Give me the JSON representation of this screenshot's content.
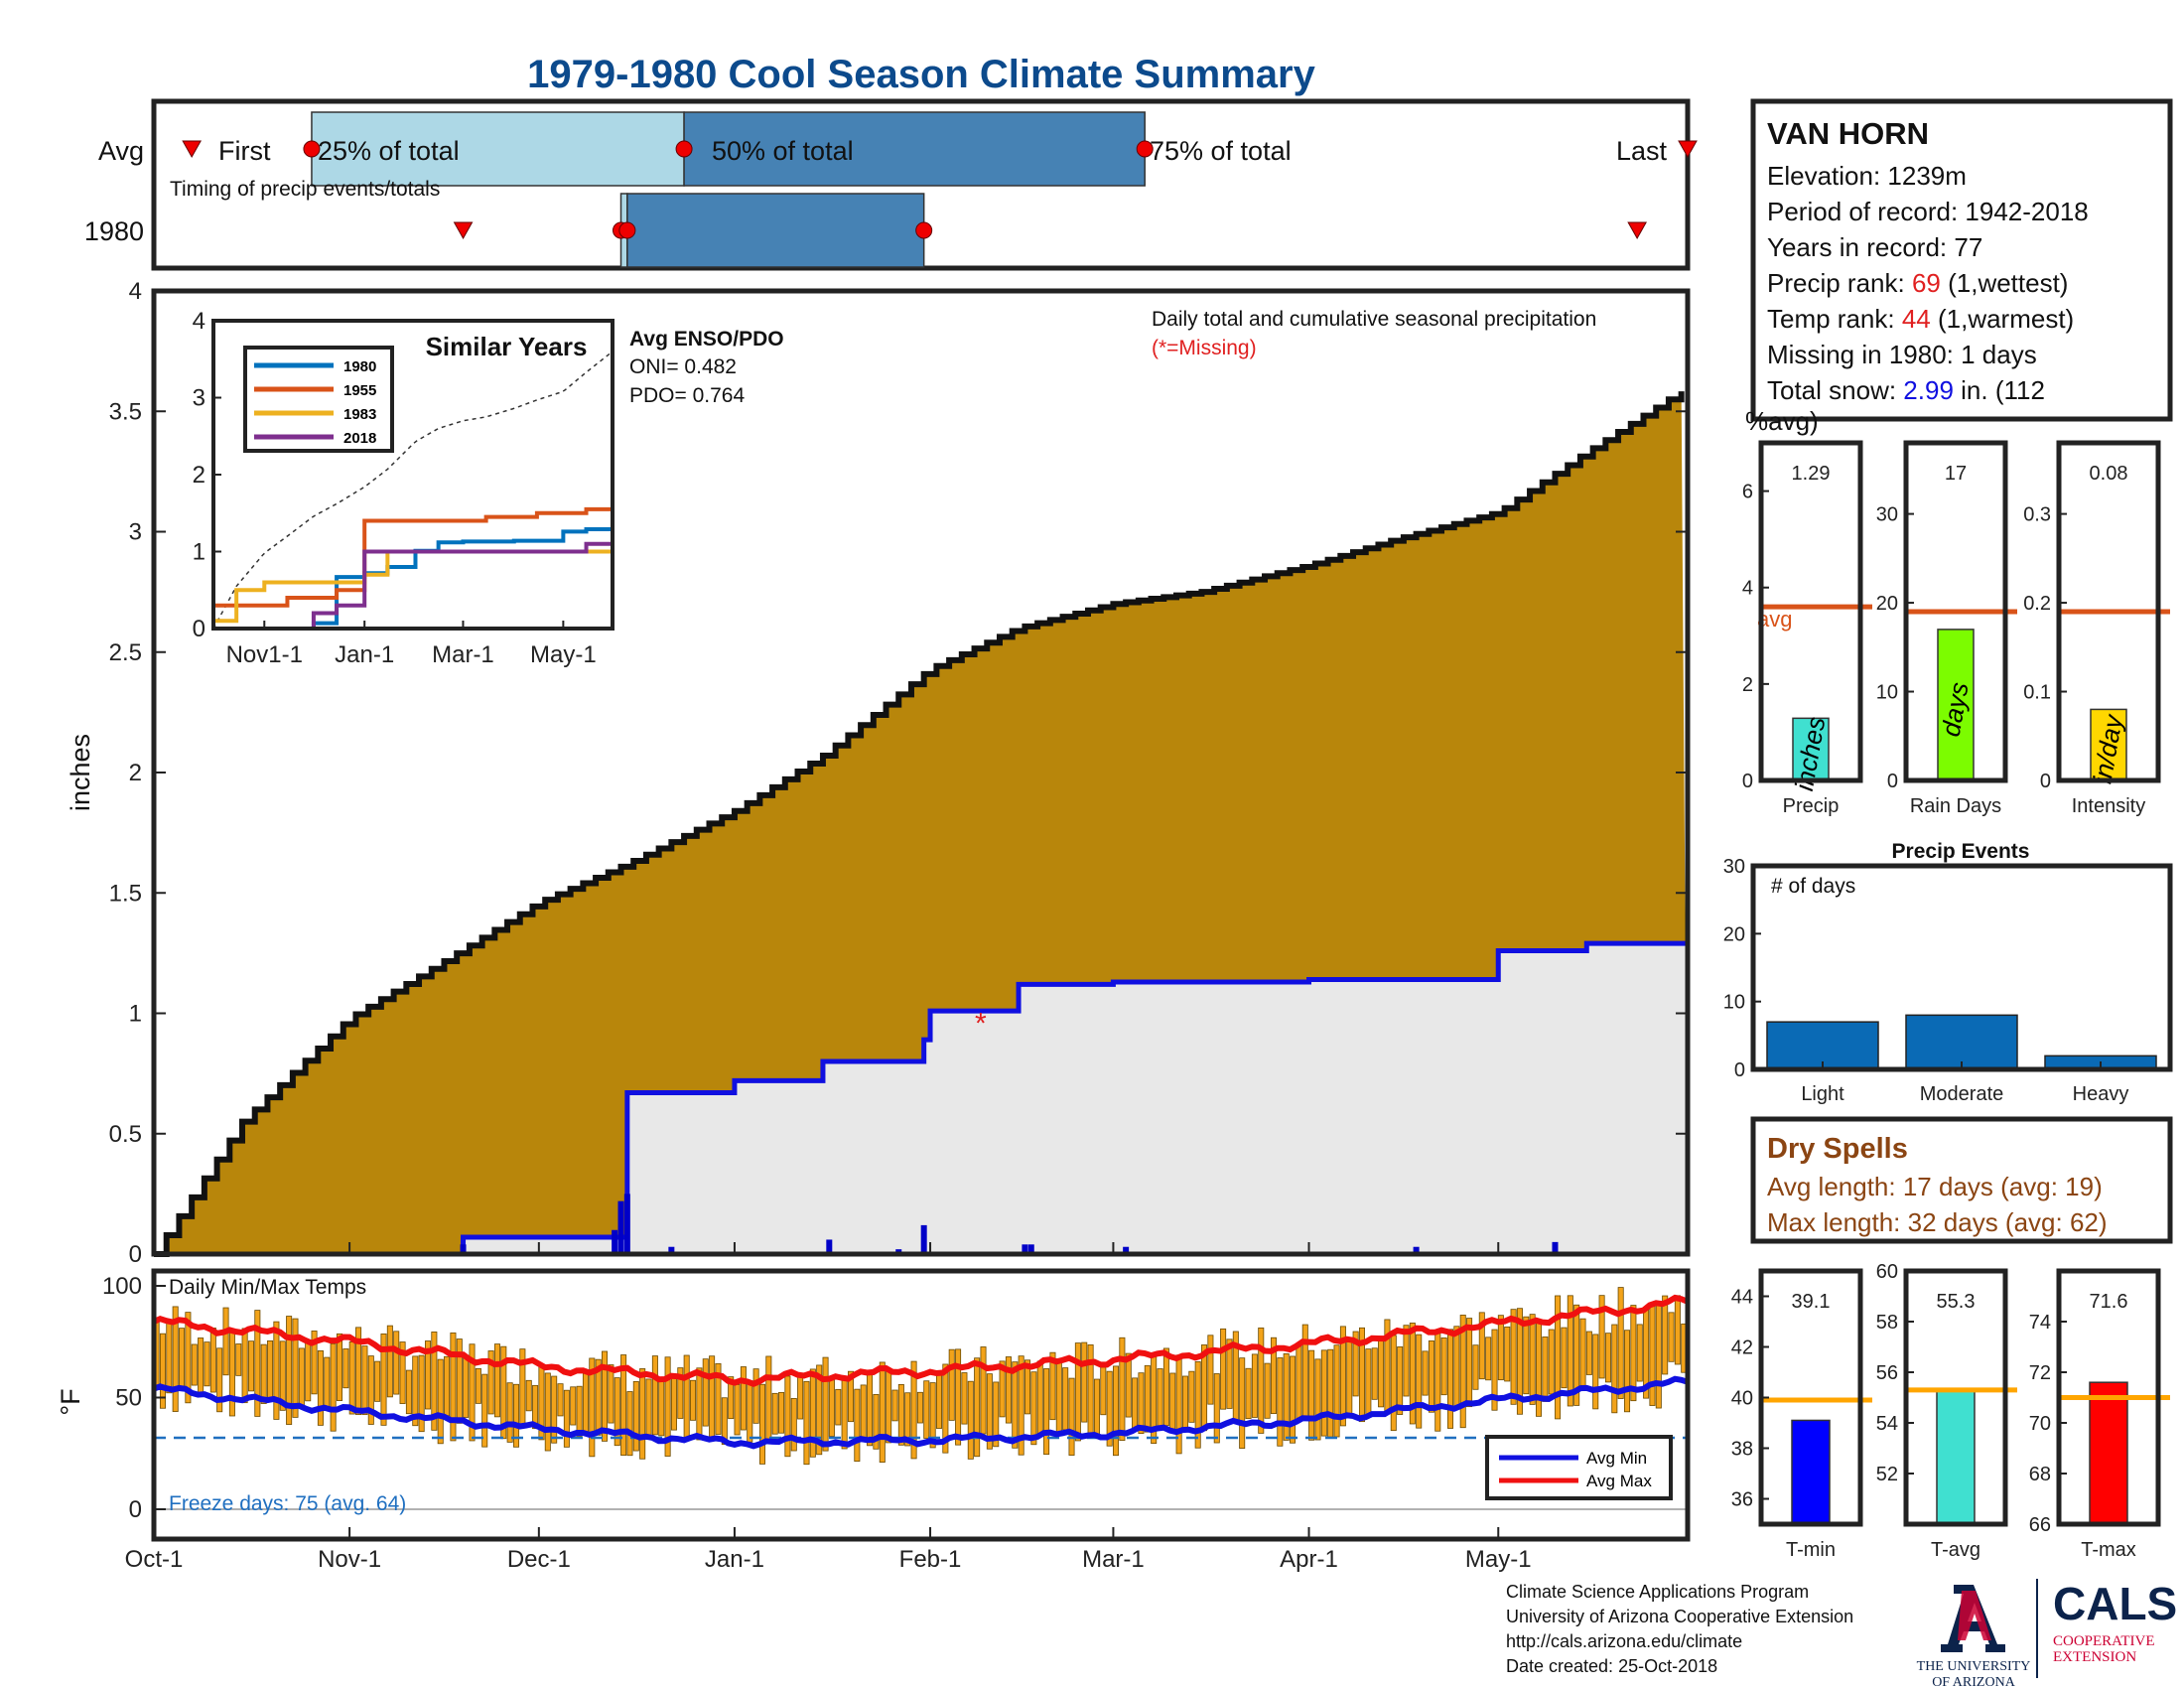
{
  "title": "1979-1980 Cool Season Climate Summary",
  "timing": {
    "row_labels": [
      "Avg",
      "1980"
    ],
    "subtitle": "Timing of precip events/totals",
    "labels": {
      "first": "First",
      "p25": "25% of total",
      "p50": "50% of total",
      "p75": "75% of total",
      "last": "Last"
    },
    "avg": {
      "first": "Oct-7",
      "p25": "Oct-26",
      "p50": "Dec-24",
      "p75": "Mar-6",
      "last": "May-31"
    },
    "y1980": {
      "first": "Nov-19",
      "p25": "Dec-14",
      "p50": "Dec-15",
      "p75": "Jan-31",
      "last": "May-23"
    }
  },
  "station": {
    "name": "VAN HORN",
    "elevation": "Elevation: 1239m",
    "period": "Period of record: 1942-2018",
    "years": "Years in record: 77",
    "precip_rank_label": "Precip rank: ",
    "precip_rank": "69",
    "precip_rank_note": " (1,wettest)",
    "temp_rank_label": "Temp rank: ",
    "temp_rank": "44",
    "temp_rank_note": " (1,warmest)",
    "missing": "Missing in 1980: 1 days",
    "snow_label": "Total snow: ",
    "snow_value": "2.99",
    "snow_note1": " in. (112",
    "snow_note2": "%avg)"
  },
  "main": {
    "ylabel": "inches",
    "legend_line1": "Daily total and cumulative seasonal precipitation",
    "legend_line2": "(*=Missing)",
    "enso_title": "Avg ENSO/PDO",
    "oni": "ONI= 0.482",
    "pdo": "PDO= 0.764",
    "yticks": [
      "0",
      "0.5",
      "1",
      "1.5",
      "2",
      "2.5",
      "3",
      "3.5",
      "4"
    ],
    "xticks": [
      "Oct-1",
      "Nov-1",
      "Dec-1",
      "Jan-1",
      "Feb-1",
      "Mar-1",
      "Apr-1",
      "May-1"
    ]
  },
  "similar": {
    "title": "Similar Years",
    "years": [
      "1980",
      "1955",
      "1983",
      "2018"
    ],
    "colors": [
      "#0072bd",
      "#d95319",
      "#edb120",
      "#7e2f8e"
    ],
    "yticks": [
      "0",
      "1",
      "2",
      "3",
      "4"
    ],
    "xticks": [
      "Nov1-1",
      "Jan-1",
      "Mar-1",
      "May-1"
    ]
  },
  "temps": {
    "label": "Daily Min/Max Temps",
    "ylabel": "°F",
    "yticks": [
      "0",
      "50",
      "100"
    ],
    "freeze": "Freeze days: 75 (avg. 64)",
    "legend_min": "Avg Min",
    "legend_max": "Avg Max"
  },
  "bars_top": [
    {
      "value": "1.29",
      "xlabel": "Precip",
      "unit": "inches",
      "yticks": [
        "0",
        "2",
        "4",
        "6"
      ],
      "avg_label": "avg"
    },
    {
      "value": "17",
      "xlabel": "Rain Days",
      "unit": "days",
      "yticks": [
        "0",
        "10",
        "20",
        "30"
      ]
    },
    {
      "value": "0.08",
      "xlabel": "Intensity",
      "unit": "in/day",
      "yticks": [
        "0",
        "0.1",
        "0.2",
        "0.3"
      ]
    }
  ],
  "events": {
    "title": "Precip Events",
    "ylabel": "# of days",
    "yticks": [
      "0",
      "10",
      "20",
      "30"
    ],
    "categories": [
      "Light",
      "Moderate",
      "Heavy"
    ]
  },
  "dry": {
    "title": "Dry Spells",
    "avg": "Avg length: 17 days (avg: 19)",
    "max": "Max length: 32 days (avg: 62)"
  },
  "bars_temp": [
    {
      "value": "39.1",
      "xlabel": "T-min",
      "yticks": [
        "36",
        "38",
        "40",
        "42",
        "44"
      ]
    },
    {
      "value": "55.3",
      "xlabel": "T-avg",
      "yticks": [
        "52",
        "54",
        "56",
        "58",
        "60"
      ]
    },
    {
      "value": "71.6",
      "xlabel": "T-max",
      "yticks": [
        "66",
        "68",
        "70",
        "72",
        "74"
      ]
    }
  ],
  "footer": {
    "line1": "Climate Science Applications Program",
    "line2": "University of Arizona Cooperative Extension",
    "line3": "http://cals.arizona.edu/climate",
    "line4": " Date created: 25-Oct-2018"
  },
  "logos": {
    "ua_name1": "THE UNIVERSITY",
    "ua_name2": "OF ARIZONA",
    "cals": "CALS",
    "cals_sub1": "COOPERATIVE",
    "cals_sub2": "EXTENSION"
  },
  "chart_data": [
    {
      "type": "area",
      "title": "Daily total and cumulative seasonal precipitation",
      "ylabel": "inches",
      "xlim": [
        "Oct-1",
        "May-31"
      ],
      "ylim": [
        0,
        4
      ],
      "series": [
        {
          "name": "Avg",
          "x": [
            "Oct-1",
            "Oct-15",
            "Nov-1",
            "Nov-15",
            "Dec-1",
            "Dec-15",
            "Jan-1",
            "Jan-15",
            "Feb-1",
            "Feb-15",
            "Mar-1",
            "Mar-15",
            "Apr-1",
            "Apr-15",
            "May-1",
            "May-15",
            "May-31"
          ],
          "y": [
            0.0,
            0.55,
            0.98,
            1.2,
            1.46,
            1.62,
            1.84,
            2.07,
            2.43,
            2.6,
            2.7,
            2.75,
            2.86,
            2.97,
            3.08,
            3.33,
            3.6
          ]
        },
        {
          "name": "1980",
          "x": [
            "Oct-1",
            "Nov-19",
            "Dec-14",
            "Dec-15",
            "Jan-1",
            "Jan-15",
            "Jan-31",
            "Feb-1",
            "Feb-15",
            "Mar-1",
            "Apr-1",
            "May-1",
            "May-15",
            "May-31"
          ],
          "y": [
            0.0,
            0.07,
            0.07,
            0.67,
            0.72,
            0.8,
            0.89,
            1.01,
            1.12,
            1.13,
            1.14,
            1.26,
            1.29,
            1.29
          ]
        }
      ],
      "daily": {
        "x": [
          "Nov-19",
          "Dec-13",
          "Dec-14",
          "Dec-15",
          "Dec-22",
          "Jan-16",
          "Jan-27",
          "Jan-31",
          "Feb-16",
          "Feb-17",
          "Mar-3",
          "Apr-18",
          "May-10",
          "May-23"
        ],
        "y": [
          0.04,
          0.1,
          0.22,
          0.25,
          0.03,
          0.06,
          0.02,
          0.12,
          0.04,
          0.04,
          0.03,
          0.03,
          0.05,
          0.01
        ]
      },
      "missing": [
        "Feb-9"
      ]
    },
    {
      "type": "line",
      "title": "Similar Years",
      "ylim": [
        0,
        4
      ],
      "x": [
        "Oct-1",
        "Oct-15",
        "Nov-1",
        "Nov-15",
        "Dec-1",
        "Dec-15",
        "Jan-1",
        "Jan-15",
        "Feb-1",
        "Feb-15",
        "Mar-1",
        "Mar-15",
        "Apr-1",
        "Apr-15",
        "May-1",
        "May-15",
        "May-31"
      ],
      "series": [
        {
          "name": "1980",
          "values": [
            0,
            0,
            0,
            0,
            0.07,
            0.67,
            0.72,
            0.8,
            1.01,
            1.12,
            1.13,
            1.13,
            1.14,
            1.14,
            1.26,
            1.29,
            1.29
          ]
        },
        {
          "name": "1955",
          "values": [
            0.3,
            0.3,
            0.3,
            0.4,
            0.4,
            0.5,
            1.4,
            1.4,
            1.4,
            1.4,
            1.4,
            1.45,
            1.45,
            1.5,
            1.5,
            1.55,
            1.55
          ]
        },
        {
          "name": "1983",
          "values": [
            0.1,
            0.5,
            0.6,
            0.6,
            0.6,
            0.6,
            0.7,
            1.0,
            1.0,
            1.0,
            1.0,
            1.0,
            1.0,
            1.0,
            1.0,
            1.0,
            1.0
          ]
        },
        {
          "name": "2018",
          "values": [
            0.0,
            0.0,
            0.0,
            0.0,
            0.2,
            0.3,
            1.0,
            1.0,
            1.0,
            1.0,
            1.0,
            1.0,
            1.0,
            1.0,
            1.0,
            1.1,
            1.2
          ]
        }
      ]
    },
    {
      "type": "bar",
      "title": "Daily Min/Max Temps",
      "ylabel": "°F",
      "ylim": [
        0,
        100
      ],
      "freeze_line": 32,
      "avg_min": {
        "x": [
          "Oct-1",
          "Nov-1",
          "Dec-1",
          "Jan-1",
          "Feb-1",
          "Mar-1",
          "Apr-1",
          "May-1",
          "May-31"
        ],
        "y": [
          54,
          44,
          36,
          30,
          31,
          34,
          40,
          49,
          57
        ]
      },
      "avg_max": {
        "x": [
          "Oct-1",
          "Nov-1",
          "Dec-1",
          "Jan-1",
          "Feb-1",
          "Mar-1",
          "Apr-1",
          "May-1",
          "May-31"
        ],
        "y": [
          84,
          75,
          64,
          58,
          62,
          67,
          74,
          83,
          93
        ]
      }
    },
    {
      "type": "bar",
      "title": "Precip",
      "values": [
        1.29
      ],
      "avg": 3.6,
      "ylim": [
        0,
        7
      ]
    },
    {
      "type": "bar",
      "title": "Rain Days",
      "values": [
        17
      ],
      "avg": 19,
      "ylim": [
        0,
        38
      ]
    },
    {
      "type": "bar",
      "title": "Intensity",
      "values": [
        0.08
      ],
      "avg": 0.19,
      "ylim": [
        0,
        0.38
      ]
    },
    {
      "type": "bar",
      "title": "Precip Events",
      "categories": [
        "Light",
        "Moderate",
        "Heavy"
      ],
      "values": [
        7,
        8,
        2
      ],
      "ylim": [
        0,
        30
      ]
    },
    {
      "type": "bar",
      "title": "T-min",
      "values": [
        39.1
      ],
      "avg": 39.9,
      "ylim": [
        35,
        45
      ]
    },
    {
      "type": "bar",
      "title": "T-avg",
      "values": [
        55.3
      ],
      "avg": 55.3,
      "ylim": [
        50,
        60
      ]
    },
    {
      "type": "bar",
      "title": "T-max",
      "values": [
        71.6
      ],
      "avg": 71.0,
      "ylim": [
        66,
        76
      ]
    }
  ]
}
